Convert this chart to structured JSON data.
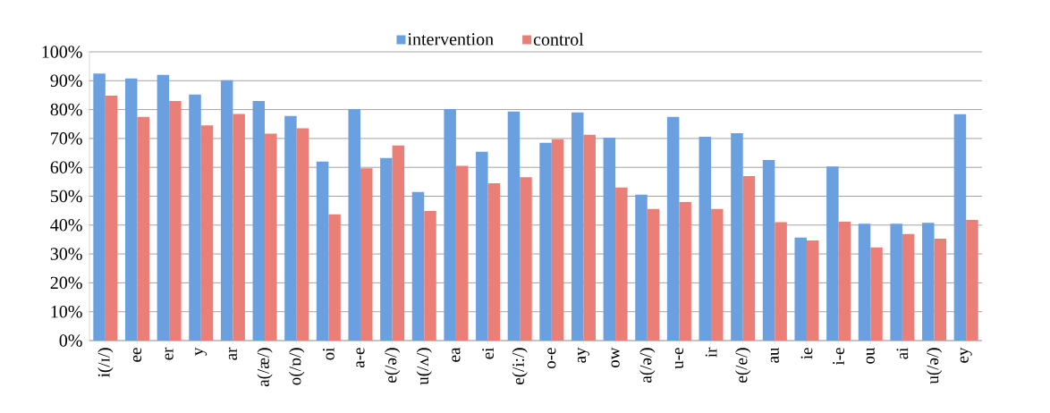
{
  "chart_data": {
    "type": "bar",
    "categories": [
      "i(/ɪ/)",
      "ee",
      "er",
      "y",
      "ar",
      "a(/æ/)",
      "o(/ɒ/)",
      "oi",
      "a-e",
      "e(/ə/)",
      "u(/ʌ/)",
      "ea",
      "ei",
      "e(/i:/)",
      "o-e",
      "ay",
      "ow",
      "a(/ə/)",
      "u-e",
      "ir",
      "e(/e/)",
      "au",
      "ie",
      "i-e",
      "ou",
      "ai",
      "u(/ə/)",
      "ey"
    ],
    "series": [
      {
        "name": "intervention",
        "color": "#6a9fe0",
        "values": [
          92.5,
          90.8,
          92,
          85.2,
          90.2,
          83,
          77.8,
          62,
          80.2,
          63.2,
          51.5,
          80.2,
          65.4,
          79.3,
          68.5,
          79,
          70.3,
          50.5,
          77.5,
          70.6,
          71.8,
          62.5,
          35.7,
          60.3,
          40.5,
          40.5,
          40.8,
          78.4
        ]
      },
      {
        "name": "control",
        "color": "#ea7f78",
        "values": [
          84.8,
          77.5,
          83,
          74.5,
          78.5,
          71.7,
          73.5,
          43.7,
          59.7,
          67.6,
          44.9,
          60.5,
          54.5,
          56.6,
          69.7,
          71.3,
          53,
          45.6,
          48,
          45.6,
          57,
          41,
          34.7,
          41.2,
          32.3,
          36.9,
          35.3,
          41.8
        ]
      }
    ],
    "ylim": [
      0,
      100
    ],
    "yticks": [
      {
        "value": 0,
        "label": "0%"
      },
      {
        "value": 10,
        "label": "10%"
      },
      {
        "value": 20,
        "label": "20%"
      },
      {
        "value": 30,
        "label": "30%"
      },
      {
        "value": 40,
        "label": "40%"
      },
      {
        "value": 50,
        "label": "50%"
      },
      {
        "value": 60,
        "label": "60%"
      },
      {
        "value": 70,
        "label": "70%"
      },
      {
        "value": 80,
        "label": "80%"
      },
      {
        "value": 90,
        "label": "90%"
      },
      {
        "value": 100,
        "label": "100%"
      }
    ],
    "grid": "y",
    "legend": "top"
  }
}
